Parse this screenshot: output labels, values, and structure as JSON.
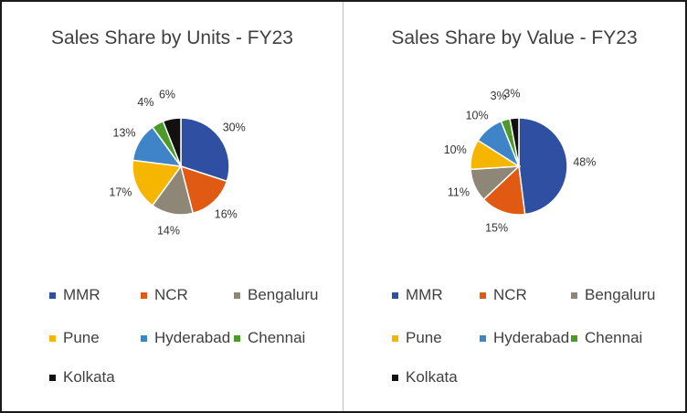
{
  "chart_data": [
    {
      "type": "pie",
      "title": "Sales Share by Units - FY23",
      "categories": [
        "MMR",
        "NCR",
        "Bengaluru",
        "Pune",
        "Hyderabad",
        "Chennai",
        "Kolkata"
      ],
      "values": [
        30,
        16,
        14,
        17,
        13,
        4,
        6
      ],
      "labels": [
        "30%",
        "16%",
        "14%",
        "17%",
        "13%",
        "4%",
        "6%"
      ],
      "legend_position": "bottom"
    },
    {
      "type": "pie",
      "title": "Sales Share by Value - FY23",
      "categories": [
        "MMR",
        "NCR",
        "Bengaluru",
        "Pune",
        "Hyderabad",
        "Chennai",
        "Kolkata"
      ],
      "values": [
        48,
        15,
        11,
        10,
        10,
        3,
        3
      ],
      "labels": [
        "48%",
        "15%",
        "11%",
        "10%",
        "10%",
        "3%",
        "3%"
      ],
      "legend_position": "bottom"
    }
  ],
  "colors": [
    "#2F4FA2",
    "#E15A14",
    "#8E8677",
    "#F5B500",
    "#3F84C6",
    "#4C9A2A",
    "#111111"
  ]
}
